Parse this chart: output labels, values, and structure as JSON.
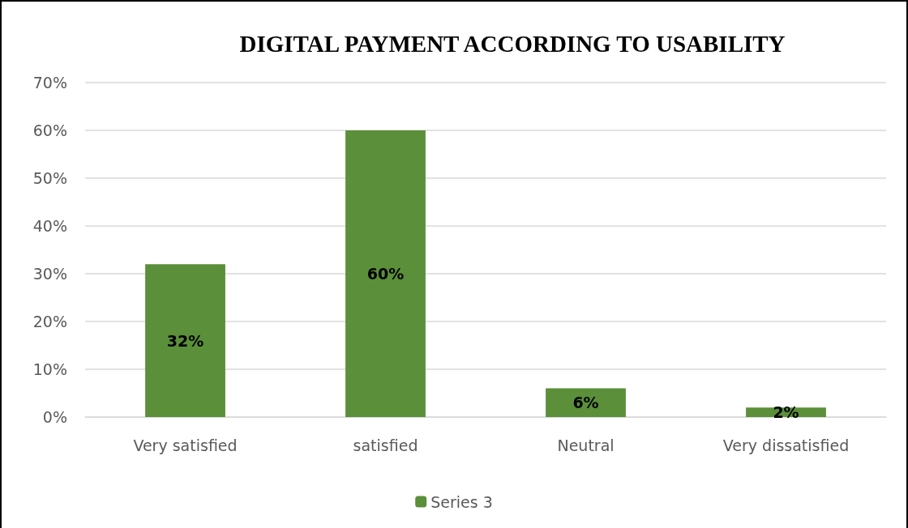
{
  "chart_data": {
    "type": "bar",
    "title": "DIGITAL PAYMENT ACCORDING TO USABILITY",
    "categories": [
      "Very satisfied",
      "satisfied",
      "Neutral",
      "Very dissatisfied"
    ],
    "series": [
      {
        "name": "Series 3",
        "color": "#5b8f3a",
        "values": [
          32,
          60,
          6,
          2
        ],
        "value_labels": [
          "32%",
          "60%",
          "6%",
          "2%"
        ]
      }
    ],
    "ylim": [
      0,
      70
    ],
    "yticks": [
      {
        "value": 0,
        "label": "0%"
      },
      {
        "value": 10,
        "label": "10%"
      },
      {
        "value": 20,
        "label": "20%"
      },
      {
        "value": 30,
        "label": "30%"
      },
      {
        "value": 40,
        "label": "40%"
      },
      {
        "value": 50,
        "label": "50%"
      },
      {
        "value": 60,
        "label": "60%"
      },
      {
        "value": 70,
        "label": "70%"
      }
    ],
    "grid": "y",
    "legend": "bottom"
  }
}
